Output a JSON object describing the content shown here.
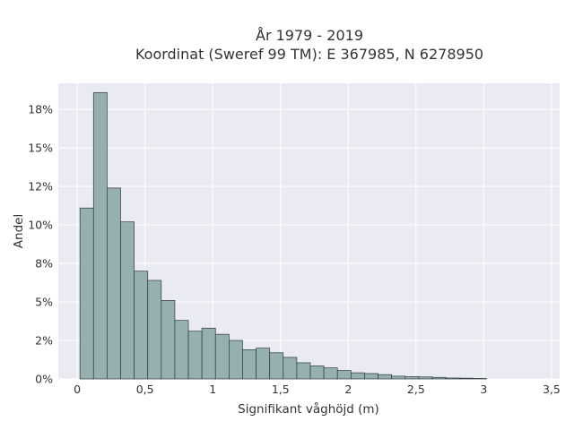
{
  "chart_data": {
    "type": "bar",
    "title": "År 1979 - 2019",
    "subtitle": "Koordinat (Sweref 99 TM): E 367985, N 6278950",
    "xlabel": "Signifikant våghöjd (m)",
    "ylabel": "Andel",
    "bin_width": 0.1,
    "bins_start": [
      0.02,
      0.12,
      0.22,
      0.32,
      0.42,
      0.52,
      0.62,
      0.72,
      0.82,
      0.92,
      1.02,
      1.12,
      1.22,
      1.32,
      1.42,
      1.52,
      1.62,
      1.72,
      1.82,
      1.92,
      2.02,
      2.12,
      2.22,
      2.32,
      2.42,
      2.52,
      2.62,
      2.72,
      2.82,
      2.92
    ],
    "values": [
      11.1,
      18.6,
      12.4,
      10.2,
      7.0,
      6.4,
      5.1,
      3.8,
      3.1,
      3.3,
      2.9,
      2.5,
      1.9,
      2.0,
      1.7,
      1.4,
      1.05,
      0.85,
      0.72,
      0.55,
      0.4,
      0.35,
      0.28,
      0.18,
      0.15,
      0.13,
      0.1,
      0.06,
      0.05,
      0.03
    ],
    "values_note_unit": "%",
    "xlim": [
      -0.14,
      3.56
    ],
    "ylim": [
      0,
      19.2
    ],
    "x_ticks": [
      0,
      0.5,
      1,
      1.5,
      2,
      2.5,
      3,
      3.5
    ],
    "x_tick_labels": [
      "0",
      "0,5",
      "1",
      "1,5",
      "2",
      "2,5",
      "3",
      "3,5"
    ],
    "y_ticks": [
      0,
      2.5,
      5,
      7.5,
      10,
      12.5,
      15,
      17.5
    ],
    "y_tick_labels": [
      "0%",
      "2%",
      "5%",
      "8%",
      "10%",
      "12%",
      "15%",
      "18%"
    ],
    "grid": true,
    "colors": {
      "bar_fill": "#95b0ae",
      "bar_stroke": "#2f3a3a",
      "plot_bg": "#eaeaf2",
      "grid": "#ffffff"
    }
  }
}
